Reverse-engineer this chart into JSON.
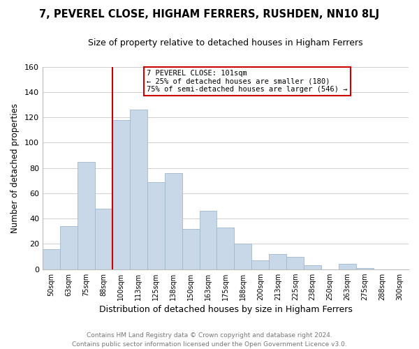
{
  "title": "7, PEVEREL CLOSE, HIGHAM FERRERS, RUSHDEN, NN10 8LJ",
  "subtitle": "Size of property relative to detached houses in Higham Ferrers",
  "xlabel": "Distribution of detached houses by size in Higham Ferrers",
  "ylabel": "Number of detached properties",
  "footer_line1": "Contains HM Land Registry data © Crown copyright and database right 2024.",
  "footer_line2": "Contains public sector information licensed under the Open Government Licence v3.0.",
  "bar_labels": [
    "50sqm",
    "63sqm",
    "75sqm",
    "88sqm",
    "100sqm",
    "113sqm",
    "125sqm",
    "138sqm",
    "150sqm",
    "163sqm",
    "175sqm",
    "188sqm",
    "200sqm",
    "213sqm",
    "225sqm",
    "238sqm",
    "250sqm",
    "263sqm",
    "275sqm",
    "288sqm",
    "300sqm"
  ],
  "bar_values": [
    16,
    34,
    85,
    48,
    118,
    126,
    69,
    76,
    32,
    46,
    33,
    20,
    7,
    12,
    10,
    3,
    0,
    4,
    1,
    0,
    0
  ],
  "bar_color": "#c8d8e8",
  "bar_edge_color": "#a0b8cc",
  "highlight_line_color": "#cc0000",
  "annotation_title": "7 PEVEREL CLOSE: 101sqm",
  "annotation_line1": "← 25% of detached houses are smaller (180)",
  "annotation_line2": "75% of semi-detached houses are larger (546) →",
  "annotation_box_color": "white",
  "annotation_box_edge": "#cc0000",
  "ylim": [
    0,
    160
  ],
  "yticks": [
    0,
    20,
    40,
    60,
    80,
    100,
    120,
    140,
    160
  ],
  "background_color": "#ffffff",
  "grid_color": "#d0d0d0",
  "title_fontsize": 10.5,
  "subtitle_fontsize": 9.0,
  "xlabel_fontsize": 9.0,
  "ylabel_fontsize": 8.5,
  "footer_fontsize": 6.5,
  "footer_color": "#777777"
}
